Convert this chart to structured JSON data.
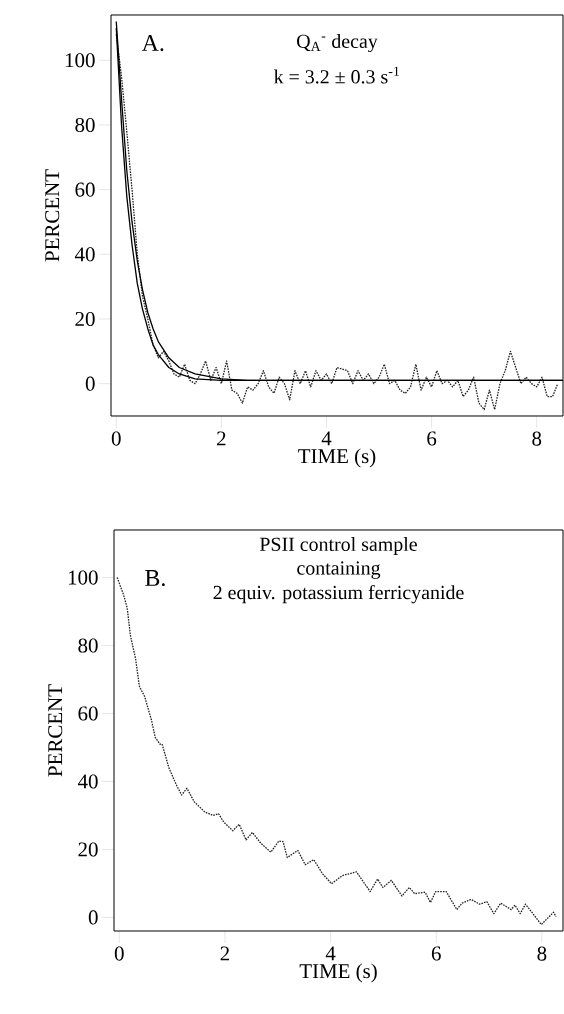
{
  "chart_data": [
    {
      "type": "line",
      "xlabel": "TIME (s)",
      "ylabel": "PERCENT",
      "xlim": [
        -0.1,
        8.5
      ],
      "ylim": [
        -10,
        114
      ],
      "xticks": [
        0,
        2,
        4,
        6,
        8
      ],
      "yticks": [
        0,
        20,
        40,
        60,
        80,
        100
      ],
      "annotations": [
        "A.",
        "Q$_{A}$$^{-}$ decay",
        "k = 3.2 ± 0.3  s$^{-1}$"
      ],
      "series": [
        {
          "color": "#222222",
          "line_style": "dotted",
          "x": [
            0,
            0.1,
            0.2,
            0.3,
            0.4,
            0.5,
            0.6,
            0.7,
            0.8,
            0.9,
            1.0,
            1.1,
            1.2,
            1.3,
            1.4,
            1.5,
            1.6,
            1.7,
            1.8,
            1.9,
            2.0,
            2.1,
            2.2,
            2.3,
            2.4,
            2.5,
            2.6,
            2.7,
            2.8,
            2.9,
            3.0,
            3.1,
            3.2,
            3.3,
            3.4,
            3.5,
            3.6,
            3.7,
            3.8,
            3.9,
            4.0,
            4.1,
            4.2,
            4.4,
            4.5,
            4.6,
            4.7,
            4.8,
            4.9,
            5.0,
            5.1,
            5.2,
            5.3,
            5.4,
            5.5,
            5.6,
            5.7,
            5.8,
            5.9,
            6.0,
            6.1,
            6.2,
            6.3,
            6.4,
            6.5,
            6.6,
            6.7,
            6.8,
            6.9,
            7.0,
            7.1,
            7.2,
            7.3,
            7.4,
            7.5,
            7.6,
            7.7,
            7.8,
            7.9,
            8.0,
            8.1,
            8.2,
            8.3,
            8.4
          ],
          "values": [
            108,
            95,
            78,
            60,
            40,
            27,
            20,
            12,
            8,
            10,
            7,
            3,
            2,
            6,
            1,
            0,
            3,
            7,
            1,
            5,
            0,
            7,
            -2,
            -3,
            -6,
            -1,
            -2,
            0,
            4,
            -1,
            -3,
            2,
            0,
            -5,
            4,
            0,
            4,
            -1,
            4,
            1,
            3,
            0,
            5,
            4,
            0,
            4,
            1,
            3,
            0,
            2,
            6,
            0,
            1,
            -2,
            -3,
            -1,
            6,
            -2,
            2,
            -1,
            4,
            0,
            1,
            -1,
            1,
            -4,
            -2,
            2,
            -6,
            -8,
            -2,
            -8,
            0,
            4,
            10,
            5,
            0,
            2,
            0,
            -1,
            2,
            -4,
            -4,
            0
          ]
        },
        {
          "color": "#000000",
          "line_style": "solid",
          "x": [
            0,
            0.1,
            0.2,
            0.3,
            0.4,
            0.5,
            0.6,
            0.7,
            0.8,
            1.0,
            1.2,
            1.5,
            2,
            2.5,
            3,
            8.5
          ],
          "values": [
            112,
            88,
            66,
            50,
            38,
            29,
            22,
            17,
            13,
            8,
            5,
            3,
            1.5,
            1,
            1,
            1
          ]
        },
        {
          "color": "#000000",
          "line_style": "solid",
          "x": [
            0,
            0.1,
            0.2,
            0.3,
            0.4,
            0.5,
            0.6,
            0.7,
            0.8,
            1.0,
            1.2,
            1.5,
            2,
            8.5
          ],
          "values": [
            110,
            80,
            58,
            43,
            31,
            23,
            17,
            12,
            9,
            5,
            3,
            1.5,
            1,
            1
          ]
        }
      ]
    },
    {
      "type": "line",
      "xlabel": "TIME (s)",
      "ylabel": "PERCENT",
      "xlim": [
        -0.1,
        8.4
      ],
      "ylim": [
        -4,
        114
      ],
      "xticks": [
        0,
        2,
        4,
        6,
        8
      ],
      "yticks": [
        0,
        20,
        40,
        60,
        80,
        100
      ],
      "annotations": [
        "B.",
        "PSII control sample",
        "containing",
        "2 equiv. potassium ferricyanide"
      ],
      "series": [
        {
          "color": "#222222",
          "line_style": "dotted",
          "x": [
            -0.04,
            0.08,
            0.15,
            0.21,
            0.31,
            0.38,
            0.48,
            0.61,
            0.68,
            0.77,
            0.81,
            0.94,
            1.08,
            1.18,
            1.28,
            1.42,
            1.62,
            1.78,
            1.88,
            1.98,
            2.15,
            2.27,
            2.4,
            2.52,
            2.68,
            2.87,
            3.02,
            3.1,
            3.18,
            3.38,
            3.52,
            3.68,
            3.85,
            4.02,
            4.22,
            4.49,
            4.75,
            4.89,
            4.99,
            5.15,
            5.35,
            5.49,
            5.59,
            5.79,
            5.89,
            5.99,
            6.19,
            6.39,
            6.49,
            6.66,
            6.82,
            6.96,
            7.09,
            7.22,
            7.42,
            7.49,
            7.59,
            7.69,
            7.99,
            8.22,
            8.27
          ],
          "values": [
            100,
            95,
            91,
            83,
            76,
            68,
            65,
            58,
            53,
            51,
            51,
            44,
            39,
            36,
            38,
            34,
            31,
            30,
            30.5,
            28,
            25.5,
            27.4,
            22.8,
            25,
            21.8,
            19.2,
            22.5,
            22.3,
            17.6,
            19.7,
            15.5,
            17,
            12.8,
            9.9,
            12.3,
            13.4,
            7.6,
            11.3,
            8.8,
            10.9,
            6.3,
            8.8,
            7,
            7.4,
            4.4,
            7.6,
            7.6,
            2.3,
            4.2,
            5.3,
            3.9,
            4.6,
            1.1,
            4.2,
            2.3,
            3.6,
            1.1,
            3.9,
            -2.1,
            1.5,
            0.2
          ]
        }
      ]
    }
  ]
}
